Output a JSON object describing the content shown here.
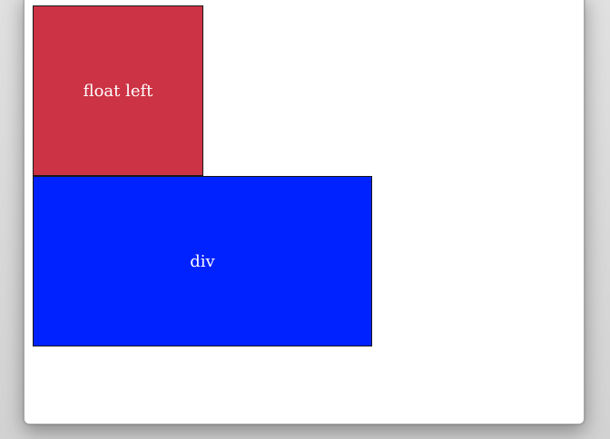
{
  "float_box": {
    "label": "float left",
    "color": "#cc3344"
  },
  "div_box": {
    "label": "div",
    "color": "#0022ff"
  }
}
